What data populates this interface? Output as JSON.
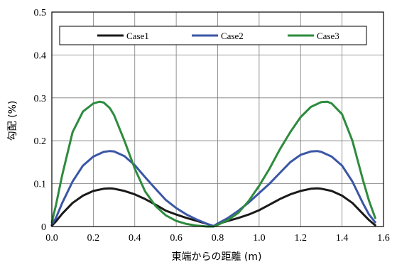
{
  "chart_data": {
    "type": "line",
    "title": "",
    "xlabel": "東端からの距離 (m)",
    "ylabel": "勾配 (%)",
    "xlim": [
      0,
      1.6
    ],
    "ylim": [
      0,
      0.5
    ],
    "x_ticks": [
      "0.0",
      "0.2",
      "0.4",
      "0.6",
      "0.8",
      "1.0",
      "1.2",
      "1.4",
      "1.6"
    ],
    "y_ticks": [
      "0",
      "0.1",
      "0.2",
      "0.3",
      "0.4",
      "0.5"
    ],
    "grid": true,
    "legend_position": "top",
    "series": [
      {
        "name": "Case1",
        "color": "#1a1a1a",
        "x": [
          0.0,
          0.02,
          0.05,
          0.1,
          0.15,
          0.2,
          0.25,
          0.28,
          0.3,
          0.35,
          0.4,
          0.45,
          0.5,
          0.55,
          0.6,
          0.65,
          0.7,
          0.75,
          0.78,
          0.8,
          0.85,
          0.9,
          0.95,
          1.0,
          1.05,
          1.1,
          1.15,
          1.2,
          1.25,
          1.28,
          1.3,
          1.35,
          1.4,
          1.45,
          1.5,
          1.53,
          1.56
        ],
        "y": [
          0.002,
          0.012,
          0.03,
          0.055,
          0.072,
          0.083,
          0.088,
          0.089,
          0.088,
          0.083,
          0.075,
          0.064,
          0.051,
          0.037,
          0.028,
          0.02,
          0.013,
          0.006,
          0.001,
          0.006,
          0.013,
          0.02,
          0.028,
          0.038,
          0.051,
          0.064,
          0.075,
          0.083,
          0.088,
          0.089,
          0.088,
          0.083,
          0.072,
          0.055,
          0.03,
          0.015,
          0.003
        ]
      },
      {
        "name": "Case2",
        "color": "#3b56a6",
        "x": [
          0.0,
          0.02,
          0.05,
          0.1,
          0.15,
          0.2,
          0.25,
          0.28,
          0.3,
          0.35,
          0.4,
          0.45,
          0.5,
          0.55,
          0.6,
          0.65,
          0.7,
          0.75,
          0.78,
          0.8,
          0.85,
          0.9,
          0.95,
          1.0,
          1.05,
          1.1,
          1.15,
          1.2,
          1.25,
          1.28,
          1.3,
          1.35,
          1.4,
          1.45,
          1.5,
          1.53,
          1.56
        ],
        "y": [
          0.005,
          0.02,
          0.055,
          0.105,
          0.142,
          0.163,
          0.174,
          0.176,
          0.175,
          0.164,
          0.143,
          0.115,
          0.088,
          0.062,
          0.043,
          0.028,
          0.016,
          0.006,
          0.001,
          0.007,
          0.02,
          0.037,
          0.056,
          0.078,
          0.1,
          0.125,
          0.15,
          0.167,
          0.175,
          0.176,
          0.174,
          0.163,
          0.142,
          0.105,
          0.055,
          0.028,
          0.01
        ]
      },
      {
        "name": "Case3",
        "color": "#2e8b3e",
        "x": [
          0.0,
          0.02,
          0.05,
          0.1,
          0.15,
          0.2,
          0.23,
          0.25,
          0.28,
          0.3,
          0.35,
          0.4,
          0.45,
          0.5,
          0.55,
          0.6,
          0.65,
          0.7,
          0.75,
          0.78,
          0.8,
          0.85,
          0.9,
          0.95,
          1.0,
          1.05,
          1.1,
          1.15,
          1.2,
          1.25,
          1.3,
          1.33,
          1.35,
          1.4,
          1.45,
          1.5,
          1.53,
          1.56
        ],
        "y": [
          0.01,
          0.05,
          0.12,
          0.22,
          0.268,
          0.287,
          0.291,
          0.289,
          0.276,
          0.26,
          0.2,
          0.135,
          0.082,
          0.048,
          0.026,
          0.013,
          0.006,
          0.002,
          0.0,
          0.0,
          0.004,
          0.015,
          0.032,
          0.06,
          0.095,
          0.135,
          0.18,
          0.22,
          0.255,
          0.279,
          0.29,
          0.291,
          0.287,
          0.262,
          0.2,
          0.11,
          0.06,
          0.02
        ]
      }
    ]
  }
}
